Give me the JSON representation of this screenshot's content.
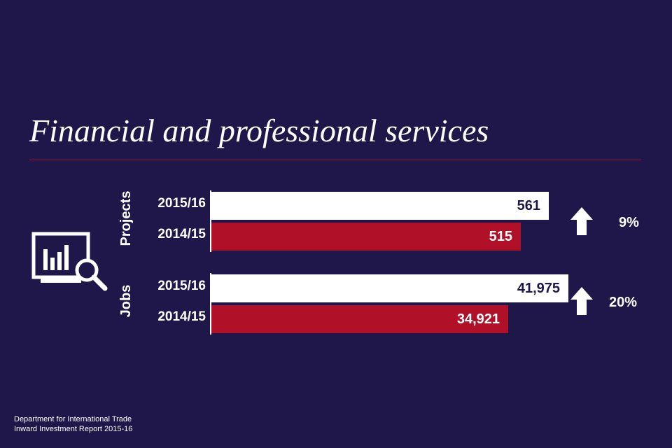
{
  "colors": {
    "background": "#1f1649",
    "current_bar": "#ffffff",
    "previous_bar": "#b01028",
    "current_value_text": "#1f1649",
    "previous_value_text": "#ffffff",
    "rule": "#a01b30"
  },
  "icon": "chart-magnifier-icon",
  "chart_data": {
    "type": "bar",
    "title": "Financial and professional services",
    "orientation": "horizontal",
    "groups": [
      {
        "name": "Projects",
        "change_icon": "up-arrow-icon",
        "change": "9%",
        "bars": [
          {
            "label": "2015/16",
            "value": 561,
            "display": "561"
          },
          {
            "label": "2014/15",
            "value": 515,
            "display": "515"
          }
        ]
      },
      {
        "name": "Jobs",
        "change_icon": "up-arrow-icon",
        "change": "20%",
        "bars": [
          {
            "label": "2015/16",
            "value": 41975,
            "display": "41,975"
          },
          {
            "label": "2014/15",
            "value": 34921,
            "display": "34,921"
          }
        ]
      }
    ]
  },
  "footer": {
    "line1": "Department for International Trade",
    "line2": "Inward Investment Report 2015-16"
  }
}
